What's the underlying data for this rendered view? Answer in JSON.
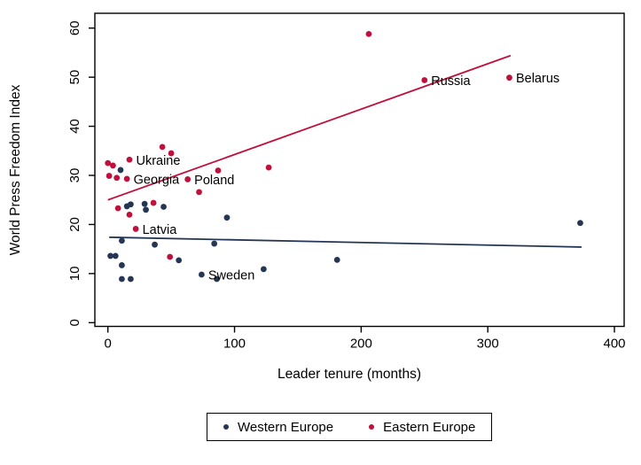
{
  "chart_data": {
    "type": "scatter",
    "title": "",
    "xlabel": "Leader tenure (months)",
    "ylabel": "World Press Freedom Index",
    "xlim": [
      0,
      400
    ],
    "ylim": [
      0,
      60
    ],
    "x_ticks": [
      0,
      100,
      200,
      300,
      400
    ],
    "y_ticks": [
      0,
      10,
      20,
      30,
      40,
      50,
      60
    ],
    "grid": false,
    "frame": true,
    "legend_position": "bottom-center",
    "series": [
      {
        "name": "Western Europe",
        "color": "#253655",
        "marker": "circle",
        "points": [
          {
            "x": 2,
            "y": 13.6
          },
          {
            "x": 6,
            "y": 13.6
          },
          {
            "x": 10,
            "y": 31.1
          },
          {
            "x": 11,
            "y": 16.7
          },
          {
            "x": 11,
            "y": 11.7
          },
          {
            "x": 11,
            "y": 8.9
          },
          {
            "x": 15,
            "y": 23.7
          },
          {
            "x": 18,
            "y": 24.1
          },
          {
            "x": 18,
            "y": 8.9
          },
          {
            "x": 29,
            "y": 24.2
          },
          {
            "x": 30,
            "y": 23.0
          },
          {
            "x": 37,
            "y": 15.9
          },
          {
            "x": 44,
            "y": 23.6
          },
          {
            "x": 56,
            "y": 12.7
          },
          {
            "x": 74,
            "y": 9.8,
            "label": "Sweden"
          },
          {
            "x": 84,
            "y": 16.1
          },
          {
            "x": 86,
            "y": 8.9
          },
          {
            "x": 94,
            "y": 21.4
          },
          {
            "x": 123,
            "y": 10.9
          },
          {
            "x": 181,
            "y": 12.8
          },
          {
            "x": 373,
            "y": 20.3
          }
        ]
      },
      {
        "name": "Eastern Europe",
        "color": "#c0103c",
        "marker": "circle",
        "points": [
          {
            "x": 0,
            "y": 32.5
          },
          {
            "x": 1,
            "y": 29.9
          },
          {
            "x": 4,
            "y": 32.0
          },
          {
            "x": 7,
            "y": 29.5
          },
          {
            "x": 8,
            "y": 23.3
          },
          {
            "x": 15,
            "y": 29.3,
            "label": "Georgia"
          },
          {
            "x": 17,
            "y": 33.2,
            "label": "Ukraine"
          },
          {
            "x": 17,
            "y": 22.0
          },
          {
            "x": 22,
            "y": 19.1,
            "label": "Latvia"
          },
          {
            "x": 36,
            "y": 24.4
          },
          {
            "x": 43,
            "y": 35.8
          },
          {
            "x": 49,
            "y": 13.4
          },
          {
            "x": 50,
            "y": 34.5
          },
          {
            "x": 63,
            "y": 29.2,
            "label": "Poland"
          },
          {
            "x": 72,
            "y": 26.6
          },
          {
            "x": 87,
            "y": 31.0
          },
          {
            "x": 127,
            "y": 31.6
          },
          {
            "x": 206,
            "y": 58.8
          },
          {
            "x": 250,
            "y": 49.4,
            "label": "Russia"
          },
          {
            "x": 317,
            "y": 49.9,
            "label": "Belarus"
          }
        ]
      }
    ],
    "trend_lines": [
      {
        "series": "Western Europe",
        "color": "#253655",
        "from": {
          "x": 1,
          "y": 17.4
        },
        "to": {
          "x": 374,
          "y": 15.4
        }
      },
      {
        "series": "Eastern Europe",
        "color": "#c0103c",
        "from": {
          "x": 0,
          "y": 25.0
        },
        "to": {
          "x": 318,
          "y": 54.4
        }
      }
    ]
  },
  "colors": {
    "axis": "#000000",
    "background": "#ffffff",
    "western": "#253655",
    "eastern": "#c0103c"
  }
}
